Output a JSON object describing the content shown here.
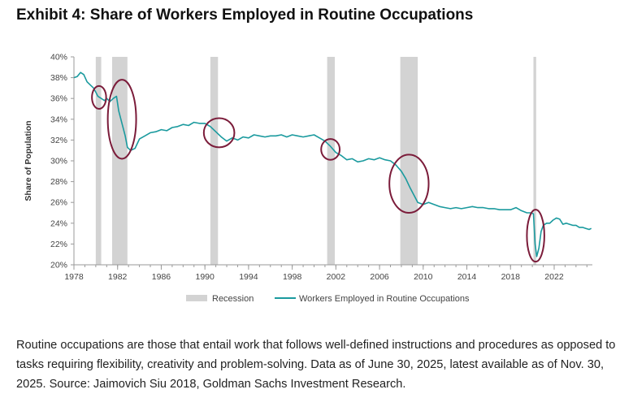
{
  "header": {
    "title": "Exhibit 4: Share of Workers Employed in Routine Occupations"
  },
  "caption": "Routine occupations are those that entail work that follows well-defined instructions and procedures as opposed to tasks requiring flexibility, creativity and problem-solving. Data as of June 30, 2025, latest available as of Nov. 30, 2025. Source: Jaimovich Siu 2018, Goldman Sachs Investment Research.",
  "chart_data": {
    "type": "line",
    "title": "Exhibit 4: Share of Workers Employed in Routine Occupations",
    "xlabel": "",
    "ylabel": "Share of Population",
    "xlim": [
      1978,
      2025.5
    ],
    "ylim": [
      20,
      40
    ],
    "x_ticks": [
      1978,
      1982,
      1986,
      1990,
      1994,
      1998,
      2002,
      2006,
      2010,
      2014,
      2018,
      2022
    ],
    "y_ticks": [
      20,
      22,
      24,
      26,
      28,
      30,
      32,
      34,
      36,
      38,
      40
    ],
    "y_tick_labels": [
      "20%",
      "22%",
      "24%",
      "26%",
      "28%",
      "30%",
      "32%",
      "34%",
      "36%",
      "38%",
      "40%"
    ],
    "grid": false,
    "legend_position": "bottom",
    "series": [
      {
        "name": "Workers Employed in Routine Occupations",
        "color": "#1a9a9e",
        "x": [
          1978.0,
          1978.3,
          1978.6,
          1978.9,
          1979.2,
          1979.5,
          1979.8,
          1980.0,
          1980.2,
          1980.5,
          1980.8,
          1981.0,
          1981.3,
          1981.6,
          1981.9,
          1982.1,
          1982.4,
          1982.7,
          1982.9,
          1983.2,
          1983.6,
          1984.0,
          1984.5,
          1985.0,
          1985.5,
          1986.0,
          1986.5,
          1987.0,
          1987.5,
          1988.0,
          1988.5,
          1989.0,
          1989.5,
          1990.0,
          1990.5,
          1991.0,
          1991.5,
          1992.0,
          1992.5,
          1993.0,
          1993.5,
          1994.0,
          1994.5,
          1995.0,
          1995.5,
          1996.0,
          1996.5,
          1997.0,
          1997.5,
          1998.0,
          1998.5,
          1999.0,
          1999.5,
          2000.0,
          2000.5,
          2001.0,
          2001.5,
          2002.0,
          2002.5,
          2003.0,
          2003.5,
          2004.0,
          2004.5,
          2005.0,
          2005.5,
          2006.0,
          2006.5,
          2007.0,
          2007.5,
          2008.0,
          2008.4,
          2008.8,
          2009.2,
          2009.5,
          2010.0,
          2010.5,
          2011.0,
          2011.5,
          2012.0,
          2012.5,
          2013.0,
          2013.5,
          2014.0,
          2014.5,
          2015.0,
          2015.5,
          2016.0,
          2016.5,
          2017.0,
          2017.5,
          2018.0,
          2018.5,
          2019.0,
          2019.5,
          2019.9,
          2020.1,
          2020.25,
          2020.4,
          2020.6,
          2020.8,
          2021.0,
          2021.3,
          2021.6,
          2021.9,
          2022.2,
          2022.5,
          2022.8,
          2023.1,
          2023.4,
          2023.7,
          2024.0,
          2024.3,
          2024.6,
          2024.9,
          2025.2,
          2025.4
        ],
        "y": [
          38.0,
          38.1,
          38.5,
          38.3,
          37.6,
          37.3,
          37.0,
          36.6,
          36.2,
          36.0,
          35.8,
          36.0,
          35.7,
          36.0,
          36.2,
          34.8,
          33.6,
          32.4,
          31.3,
          31.0,
          31.2,
          32.1,
          32.4,
          32.7,
          32.8,
          33.0,
          32.9,
          33.2,
          33.3,
          33.5,
          33.4,
          33.7,
          33.6,
          33.6,
          33.3,
          32.8,
          32.3,
          31.9,
          32.2,
          32.0,
          32.3,
          32.2,
          32.5,
          32.4,
          32.3,
          32.4,
          32.4,
          32.5,
          32.3,
          32.5,
          32.4,
          32.3,
          32.4,
          32.5,
          32.2,
          31.9,
          31.4,
          30.8,
          30.5,
          30.1,
          30.2,
          29.9,
          30.0,
          30.2,
          30.1,
          30.3,
          30.1,
          30.0,
          29.6,
          29.0,
          28.3,
          27.4,
          26.6,
          26.0,
          25.8,
          26.0,
          25.8,
          25.6,
          25.5,
          25.4,
          25.5,
          25.4,
          25.5,
          25.6,
          25.5,
          25.5,
          25.4,
          25.4,
          25.3,
          25.3,
          25.3,
          25.5,
          25.2,
          25.0,
          25.0,
          24.9,
          22.0,
          20.8,
          21.6,
          23.2,
          23.8,
          24.0,
          24.0,
          24.3,
          24.5,
          24.4,
          23.9,
          24.0,
          23.9,
          23.8,
          23.8,
          23.6,
          23.6,
          23.5,
          23.4,
          23.5
        ]
      }
    ],
    "recession": {
      "name": "Recession",
      "color": "#d3d3d3",
      "periods": [
        [
          1980.0,
          1980.5
        ],
        [
          1981.5,
          1982.9
        ],
        [
          1990.5,
          1991.2
        ],
        [
          2001.2,
          2001.9
        ],
        [
          2007.9,
          2009.5
        ],
        [
          2020.1,
          2020.35
        ]
      ]
    },
    "highlight_color": "#7b1c3a",
    "highlights": [
      {
        "x": 1980.3,
        "y": 36.1,
        "rx": 0.65,
        "ry": 1.1
      },
      {
        "x": 1982.4,
        "y": 34.0,
        "rx": 1.3,
        "ry": 3.8
      },
      {
        "x": 1991.3,
        "y": 32.7,
        "rx": 1.4,
        "ry": 1.4
      },
      {
        "x": 2001.5,
        "y": 31.1,
        "rx": 0.85,
        "ry": 1.0
      },
      {
        "x": 2008.7,
        "y": 27.8,
        "rx": 1.8,
        "ry": 2.8
      },
      {
        "x": 2020.3,
        "y": 22.8,
        "rx": 0.8,
        "ry": 2.5
      }
    ]
  }
}
